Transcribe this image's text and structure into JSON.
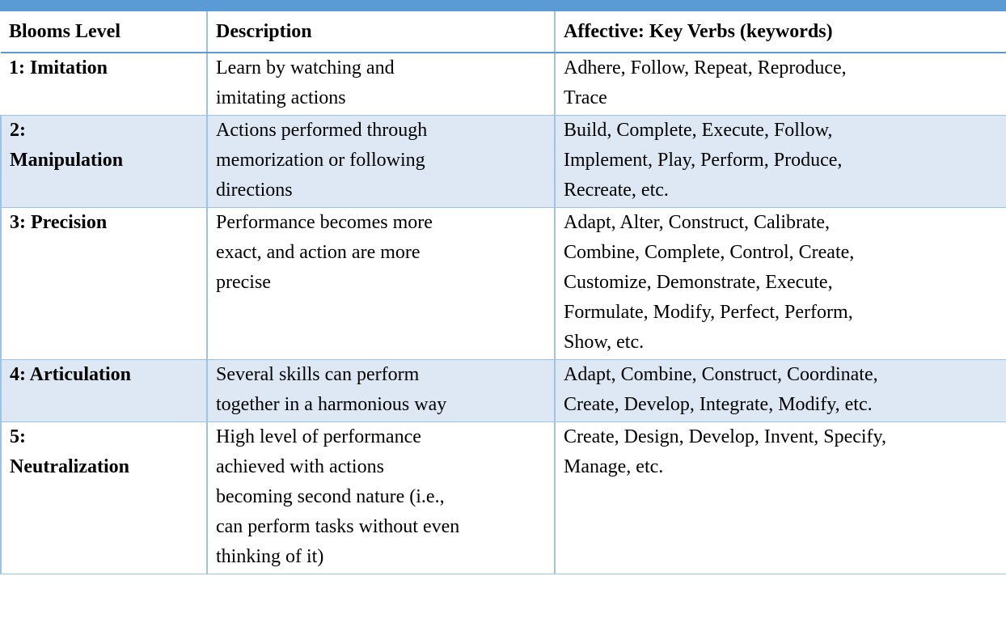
{
  "table": {
    "header": [
      "Blooms Level",
      "Description",
      "Affective: Key Verbs (keywords)"
    ],
    "rows": [
      [
        [
          "1: Imitation"
        ],
        [
          "Learn by watching and",
          "imitating actions"
        ],
        [
          "Adhere, Follow, Repeat, Reproduce,",
          "Trace"
        ]
      ],
      [
        [
          "2:",
          "Manipulation"
        ],
        [
          "Actions performed through",
          "memorization or following",
          "directions"
        ],
        [
          "Build, Complete, Execute, Follow,",
          "Implement, Play, Perform, Produce,",
          "Recreate, etc."
        ]
      ],
      [
        [
          "3: Precision"
        ],
        [
          "Performance becomes more",
          "exact, and action are more",
          "precise"
        ],
        [
          "Adapt, Alter, Construct, Calibrate,",
          "Combine, Complete, Control, Create,",
          "Customize, Demonstrate, Execute,",
          "Formulate, Modify, Perfect, Perform,",
          "Show, etc."
        ]
      ],
      [
        [
          "4: Articulation"
        ],
        [
          "Several skills can perform",
          "together in a harmonious way"
        ],
        [
          "Adapt, Combine, Construct, Coordinate,",
          "Create, Develop, Integrate, Modify, etc."
        ]
      ],
      [
        [
          "5:",
          "Neutralization"
        ],
        [
          "High level of performance",
          "achieved with actions",
          "becoming second nature (i.e.,",
          "can perform tasks without even",
          "thinking of it)"
        ],
        [
          "Create, Design, Develop, Invent, Specify,",
          "Manage, etc."
        ]
      ]
    ]
  }
}
